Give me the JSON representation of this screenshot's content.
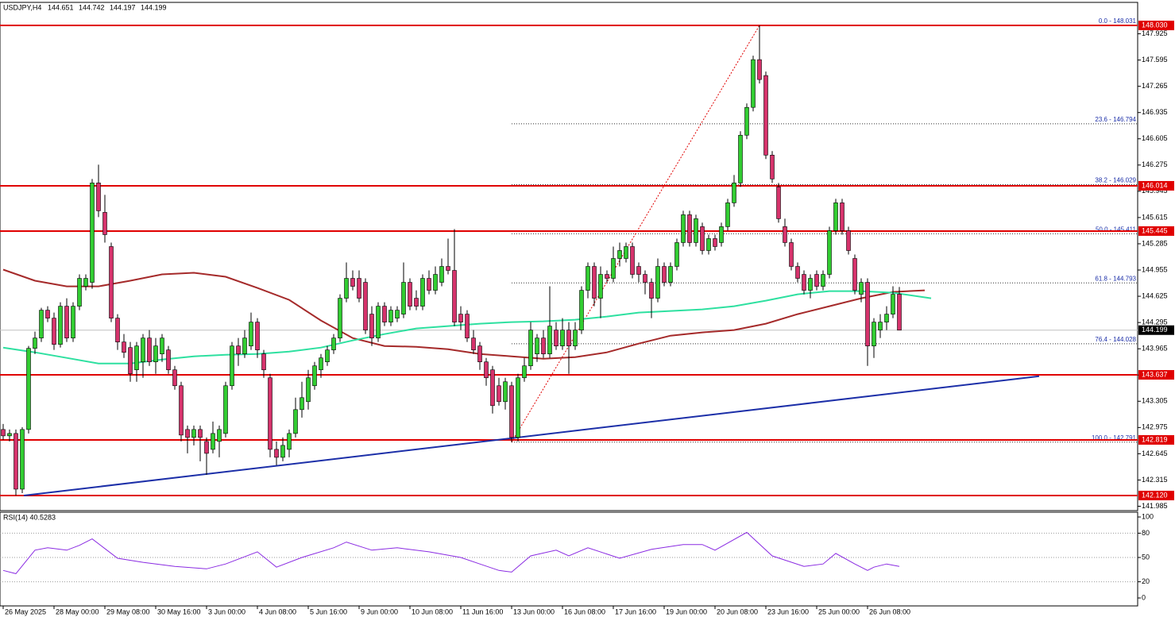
{
  "chart_data": {
    "type": "candlestick",
    "symbol": "USDJPY,H4",
    "header_values": [
      144.651,
      144.742,
      144.197,
      144.199
    ],
    "bull_color": "#32cd32",
    "bear_color": "#d6336c",
    "xlim": [
      -0.5,
      178.5
    ],
    "ylim": [
      141.93,
      148.32
    ],
    "yticks": [
      147.925,
      147.595,
      147.265,
      146.935,
      146.605,
      146.275,
      145.945,
      145.615,
      145.285,
      144.955,
      144.625,
      144.295,
      143.965,
      143.635,
      143.305,
      142.975,
      142.645,
      142.315,
      141.985
    ],
    "x_labels": [
      {
        "value": 0,
        "label": "26 May 2025"
      },
      {
        "value": 8,
        "label": "28 May 00:00"
      },
      {
        "value": 16,
        "label": "29 May 08:00"
      },
      {
        "value": 24,
        "label": "30 May 16:00"
      },
      {
        "value": 32,
        "label": "3 Jun 00:00"
      },
      {
        "value": 40,
        "label": "4 Jun 08:00"
      },
      {
        "value": 48,
        "label": "5 Jun 16:00"
      },
      {
        "value": 56,
        "label": "9 Jun 00:00"
      },
      {
        "value": 64,
        "label": "10 Jun 08:00"
      },
      {
        "value": 72,
        "label": "11 Jun 16:00"
      },
      {
        "value": 80,
        "label": "13 Jun 00:00"
      },
      {
        "value": 88,
        "label": "16 Jun 08:00"
      },
      {
        "value": 96,
        "label": "17 Jun 16:00"
      },
      {
        "value": 104,
        "label": "19 Jun 00:00"
      },
      {
        "value": 112,
        "label": "20 Jun 08:00"
      },
      {
        "value": 120,
        "label": "23 Jun 16:00"
      },
      {
        "value": 128,
        "label": "25 Jun 00:00"
      },
      {
        "value": 136,
        "label": "26 Jun 08:00"
      }
    ],
    "candles": [
      [
        142.95,
        143.02,
        142.82,
        142.87
      ],
      [
        142.87,
        142.95,
        142.8,
        142.9
      ],
      [
        142.9,
        142.95,
        142.12,
        142.2
      ],
      [
        142.2,
        142.98,
        142.15,
        142.95
      ],
      [
        142.95,
        144.0,
        142.9,
        143.97
      ],
      [
        143.97,
        144.18,
        143.9,
        144.1
      ],
      [
        144.1,
        144.48,
        144.05,
        144.45
      ],
      [
        144.45,
        144.5,
        144.3,
        144.35
      ],
      [
        144.35,
        144.42,
        143.95,
        144.02
      ],
      [
        144.02,
        144.55,
        143.98,
        144.5
      ],
      [
        144.5,
        144.6,
        144.05,
        144.1
      ],
      [
        144.1,
        144.55,
        144.05,
        144.5
      ],
      [
        144.5,
        144.9,
        144.45,
        144.85
      ],
      [
        144.75,
        144.9,
        144.7,
        144.85
      ],
      [
        144.8,
        146.1,
        144.72,
        146.05
      ],
      [
        146.05,
        146.28,
        145.62,
        145.7
      ],
      [
        145.68,
        145.9,
        145.3,
        145.4
      ],
      [
        145.25,
        145.3,
        144.3,
        144.35
      ],
      [
        144.35,
        144.4,
        143.95,
        144.05
      ],
      [
        144.05,
        144.15,
        143.85,
        143.92
      ],
      [
        143.98,
        144.05,
        143.55,
        143.65
      ],
      [
        143.7,
        144.05,
        143.55,
        144.0
      ],
      [
        143.8,
        144.15,
        143.6,
        144.1
      ],
      [
        144.1,
        144.2,
        143.75,
        143.8
      ],
      [
        143.8,
        144.1,
        143.65,
        144.0
      ],
      [
        143.9,
        144.15,
        143.8,
        144.1
      ],
      [
        143.95,
        144.0,
        143.65,
        143.7
      ],
      [
        143.7,
        143.75,
        143.45,
        143.5
      ],
      [
        143.5,
        143.55,
        142.8,
        142.88
      ],
      [
        142.95,
        143.0,
        142.65,
        142.85
      ],
      [
        142.85,
        143.0,
        142.75,
        142.95
      ],
      [
        142.95,
        143.0,
        142.55,
        142.85
      ],
      [
        142.8,
        142.85,
        142.38,
        142.65
      ],
      [
        142.7,
        143.05,
        142.65,
        142.9
      ],
      [
        142.8,
        143.0,
        142.6,
        142.95
      ],
      [
        142.9,
        143.55,
        142.85,
        143.5
      ],
      [
        143.5,
        144.05,
        143.45,
        144.0
      ],
      [
        144.0,
        144.1,
        143.75,
        143.9
      ],
      [
        143.9,
        144.2,
        143.85,
        144.1
      ],
      [
        144.0,
        144.42,
        143.95,
        144.3
      ],
      [
        144.3,
        144.35,
        143.85,
        143.95
      ],
      [
        143.9,
        143.95,
        143.6,
        143.7
      ],
      [
        143.6,
        143.65,
        142.6,
        142.7
      ],
      [
        142.7,
        142.8,
        142.5,
        142.6
      ],
      [
        142.6,
        142.85,
        142.55,
        142.75
      ],
      [
        142.7,
        142.95,
        142.6,
        142.9
      ],
      [
        142.9,
        143.35,
        142.85,
        143.2
      ],
      [
        143.2,
        143.55,
        143.1,
        143.35
      ],
      [
        143.3,
        143.7,
        143.2,
        143.6
      ],
      [
        143.5,
        143.8,
        143.45,
        143.75
      ],
      [
        143.7,
        143.9,
        143.6,
        143.85
      ],
      [
        143.8,
        144.0,
        143.75,
        143.95
      ],
      [
        143.95,
        144.15,
        143.9,
        144.1
      ],
      [
        144.1,
        144.65,
        144.05,
        144.6
      ],
      [
        144.6,
        145.05,
        144.55,
        144.85
      ],
      [
        144.85,
        144.95,
        144.7,
        144.75
      ],
      [
        144.85,
        144.95,
        144.55,
        144.6
      ],
      [
        144.8,
        144.85,
        144.15,
        144.2
      ],
      [
        144.4,
        144.5,
        144.0,
        144.1
      ],
      [
        144.1,
        144.55,
        144.05,
        144.5
      ],
      [
        144.5,
        144.55,
        144.25,
        144.3
      ],
      [
        144.3,
        144.5,
        144.25,
        144.45
      ],
      [
        144.35,
        144.5,
        144.3,
        144.45
      ],
      [
        144.4,
        145.05,
        144.35,
        144.8
      ],
      [
        144.8,
        144.85,
        144.45,
        144.5
      ],
      [
        144.6,
        144.7,
        144.45,
        144.5
      ],
      [
        144.5,
        144.9,
        144.45,
        144.85
      ],
      [
        144.85,
        144.95,
        144.65,
        144.7
      ],
      [
        144.7,
        145.0,
        144.65,
        144.9
      ],
      [
        144.8,
        145.1,
        144.75,
        145.0
      ],
      [
        145.0,
        145.35,
        144.9,
        144.95
      ],
      [
        144.95,
        145.47,
        144.25,
        144.3
      ],
      [
        144.4,
        144.5,
        144.2,
        144.3
      ],
      [
        144.4,
        144.45,
        144.05,
        144.1
      ],
      [
        144.1,
        144.2,
        143.9,
        143.95
      ],
      [
        144.0,
        144.05,
        143.7,
        143.8
      ],
      [
        143.8,
        143.85,
        143.5,
        143.6
      ],
      [
        143.7,
        143.75,
        143.15,
        143.25
      ],
      [
        143.5,
        143.6,
        143.25,
        143.3
      ],
      [
        143.3,
        143.6,
        143.2,
        143.55
      ],
      [
        143.5,
        143.55,
        142.79,
        142.85
      ],
      [
        142.85,
        143.65,
        142.8,
        143.6
      ],
      [
        143.6,
        143.85,
        143.55,
        143.75
      ],
      [
        143.75,
        144.3,
        143.7,
        144.2
      ],
      [
        143.9,
        144.15,
        143.8,
        144.1
      ],
      [
        144.1,
        144.2,
        143.85,
        143.9
      ],
      [
        143.9,
        144.75,
        143.85,
        144.25
      ],
      [
        144.2,
        144.3,
        143.95,
        144.0
      ],
      [
        144.0,
        144.35,
        143.95,
        144.2
      ],
      [
        144.2,
        144.3,
        143.65,
        144.0
      ],
      [
        144.0,
        144.3,
        143.95,
        144.2
      ],
      [
        144.2,
        144.75,
        144.15,
        144.7
      ],
      [
        144.7,
        145.05,
        144.6,
        145.0
      ],
      [
        145.0,
        145.05,
        144.5,
        144.6
      ],
      [
        144.6,
        145.0,
        144.35,
        144.9
      ],
      [
        144.9,
        144.95,
        144.8,
        144.85
      ],
      [
        144.85,
        145.25,
        144.8,
        145.1
      ],
      [
        145.1,
        145.3,
        145.0,
        145.2
      ],
      [
        145.1,
        145.3,
        145.05,
        145.25
      ],
      [
        145.25,
        145.3,
        144.85,
        144.9
      ],
      [
        145.0,
        145.05,
        144.8,
        144.9
      ],
      [
        144.9,
        144.95,
        144.65,
        144.8
      ],
      [
        144.8,
        144.85,
        144.35,
        144.6
      ],
      [
        144.6,
        145.1,
        144.55,
        145.0
      ],
      [
        145.0,
        145.05,
        144.75,
        144.8
      ],
      [
        144.8,
        145.05,
        144.75,
        145.0
      ],
      [
        145.0,
        145.35,
        144.95,
        145.3
      ],
      [
        145.3,
        145.7,
        145.25,
        145.65
      ],
      [
        145.65,
        145.7,
        145.25,
        145.3
      ],
      [
        145.3,
        145.65,
        145.25,
        145.6
      ],
      [
        145.5,
        145.55,
        145.15,
        145.2
      ],
      [
        145.2,
        145.4,
        145.15,
        145.35
      ],
      [
        145.35,
        145.4,
        145.2,
        145.25
      ],
      [
        145.3,
        145.55,
        145.25,
        145.5
      ],
      [
        145.5,
        145.85,
        145.45,
        145.8
      ],
      [
        145.8,
        146.15,
        145.75,
        146.05
      ],
      [
        146.05,
        146.7,
        146.0,
        146.65
      ],
      [
        146.65,
        147.05,
        146.6,
        147.0
      ],
      [
        147.0,
        147.65,
        146.95,
        147.6
      ],
      [
        147.6,
        148.031,
        147.3,
        147.35
      ],
      [
        147.4,
        147.45,
        146.35,
        146.4
      ],
      [
        146.4,
        146.45,
        146.05,
        146.1
      ],
      [
        146.0,
        146.05,
        145.55,
        145.6
      ],
      [
        145.5,
        145.6,
        145.25,
        145.3
      ],
      [
        145.3,
        145.35,
        144.95,
        145.0
      ],
      [
        145.0,
        145.05,
        144.8,
        144.85
      ],
      [
        144.9,
        144.95,
        144.65,
        144.7
      ],
      [
        144.7,
        144.9,
        144.6,
        144.85
      ],
      [
        144.9,
        144.95,
        144.7,
        144.75
      ],
      [
        144.75,
        144.95,
        144.7,
        144.9
      ],
      [
        144.9,
        145.5,
        144.85,
        145.45
      ],
      [
        145.45,
        145.85,
        145.4,
        145.8
      ],
      [
        145.8,
        145.85,
        145.4,
        145.45
      ],
      [
        145.45,
        145.5,
        145.15,
        145.2
      ],
      [
        145.1,
        145.15,
        144.65,
        144.7
      ],
      [
        144.65,
        144.85,
        144.55,
        144.8
      ],
      [
        144.8,
        144.85,
        143.75,
        144.0
      ],
      [
        144.0,
        144.35,
        143.85,
        144.3
      ],
      [
        144.2,
        144.4,
        144.1,
        144.3
      ],
      [
        144.3,
        144.5,
        144.2,
        144.4
      ],
      [
        144.4,
        144.75,
        144.35,
        144.65
      ],
      [
        144.651,
        144.742,
        144.197,
        144.199
      ]
    ],
    "moving_averages": [
      {
        "color": "#a52a2a",
        "x": [
          0,
          5,
          10,
          15,
          20,
          25,
          30,
          35,
          40,
          45,
          50,
          55,
          60,
          65,
          70,
          75,
          80,
          85,
          90,
          95,
          100,
          105,
          110,
          115,
          120,
          125,
          130,
          135,
          140,
          145
        ],
        "values": [
          144.96,
          144.82,
          144.75,
          144.75,
          144.82,
          144.9,
          144.92,
          144.87,
          144.73,
          144.58,
          144.32,
          144.1,
          144.0,
          143.99,
          143.96,
          143.9,
          143.87,
          143.84,
          143.86,
          143.92,
          144.03,
          144.13,
          144.17,
          144.2,
          144.28,
          144.4,
          144.5,
          144.6,
          144.68,
          144.7
        ]
      },
      {
        "color": "#2ee0a0",
        "x": [
          0,
          5,
          10,
          15,
          20,
          25,
          30,
          35,
          40,
          45,
          50,
          55,
          60,
          65,
          70,
          75,
          80,
          85,
          90,
          95,
          100,
          105,
          110,
          115,
          120,
          125,
          130,
          135,
          140,
          146
        ],
        "values": [
          143.98,
          143.92,
          143.85,
          143.78,
          143.78,
          143.83,
          143.87,
          143.89,
          143.9,
          143.93,
          143.98,
          144.07,
          144.15,
          144.22,
          144.25,
          144.28,
          144.3,
          144.31,
          144.33,
          144.37,
          144.42,
          144.44,
          144.46,
          144.5,
          144.57,
          144.65,
          144.69,
          144.69,
          144.67,
          144.6
        ]
      }
    ],
    "levels": [
      {
        "value": 148.03,
        "label": "148.030"
      },
      {
        "value": 146.014,
        "label": "146.014"
      },
      {
        "value": 145.445,
        "label": "145.445"
      },
      {
        "value": 143.637,
        "label": "143.637"
      },
      {
        "value": 142.819,
        "label": "142.819"
      },
      {
        "value": 142.12,
        "label": "142.120"
      }
    ],
    "level_color": "#e00000",
    "current_price": 144.199,
    "fib_levels": [
      {
        "value": 148.031,
        "label": "0.0 - 148.031"
      },
      {
        "value": 146.794,
        "label": "23.6 - 146.794"
      },
      {
        "value": 146.029,
        "label": "38.2 - 146.029"
      },
      {
        "value": 145.411,
        "label": "50.0 - 145.411"
      },
      {
        "value": 144.793,
        "label": "61.8 - 144.793"
      },
      {
        "value": 144.028,
        "label": "76.4 - 144.028"
      },
      {
        "value": 142.791,
        "label": "100.0 - 142.791"
      }
    ],
    "fib_x": [
      80,
      119
    ],
    "trendline": {
      "color": "#1c2fa8",
      "x": [
        3.25,
        163
      ],
      "values": [
        142.12,
        143.62
      ]
    },
    "rsi": {
      "title": "RSI(14) 40.5283",
      "color": "#8a2be2",
      "ylim": [
        -9.8,
        105.9
      ],
      "yticks": [
        100,
        80,
        50,
        20,
        0
      ],
      "levels": [
        80,
        50,
        20
      ],
      "x": [
        0,
        2,
        5,
        7,
        10,
        12,
        14,
        16,
        18,
        22,
        27,
        32,
        35,
        40,
        43,
        47,
        52,
        54,
        58,
        62,
        67,
        72,
        75,
        78,
        80,
        83,
        87,
        89,
        92,
        97,
        102,
        107,
        110,
        112,
        117,
        121,
        126,
        129,
        131,
        134,
        136,
        137,
        139,
        141
      ],
      "values": [
        34,
        30,
        59,
        62,
        59,
        65,
        73,
        61,
        49,
        44,
        39,
        36,
        42,
        57,
        38,
        50,
        62,
        69,
        59,
        62,
        57,
        50,
        42,
        34,
        32,
        52,
        59,
        52,
        62,
        49,
        60,
        66,
        66,
        59,
        81,
        52,
        39,
        42,
        55,
        42,
        34,
        38,
        42,
        39
      ]
    }
  }
}
